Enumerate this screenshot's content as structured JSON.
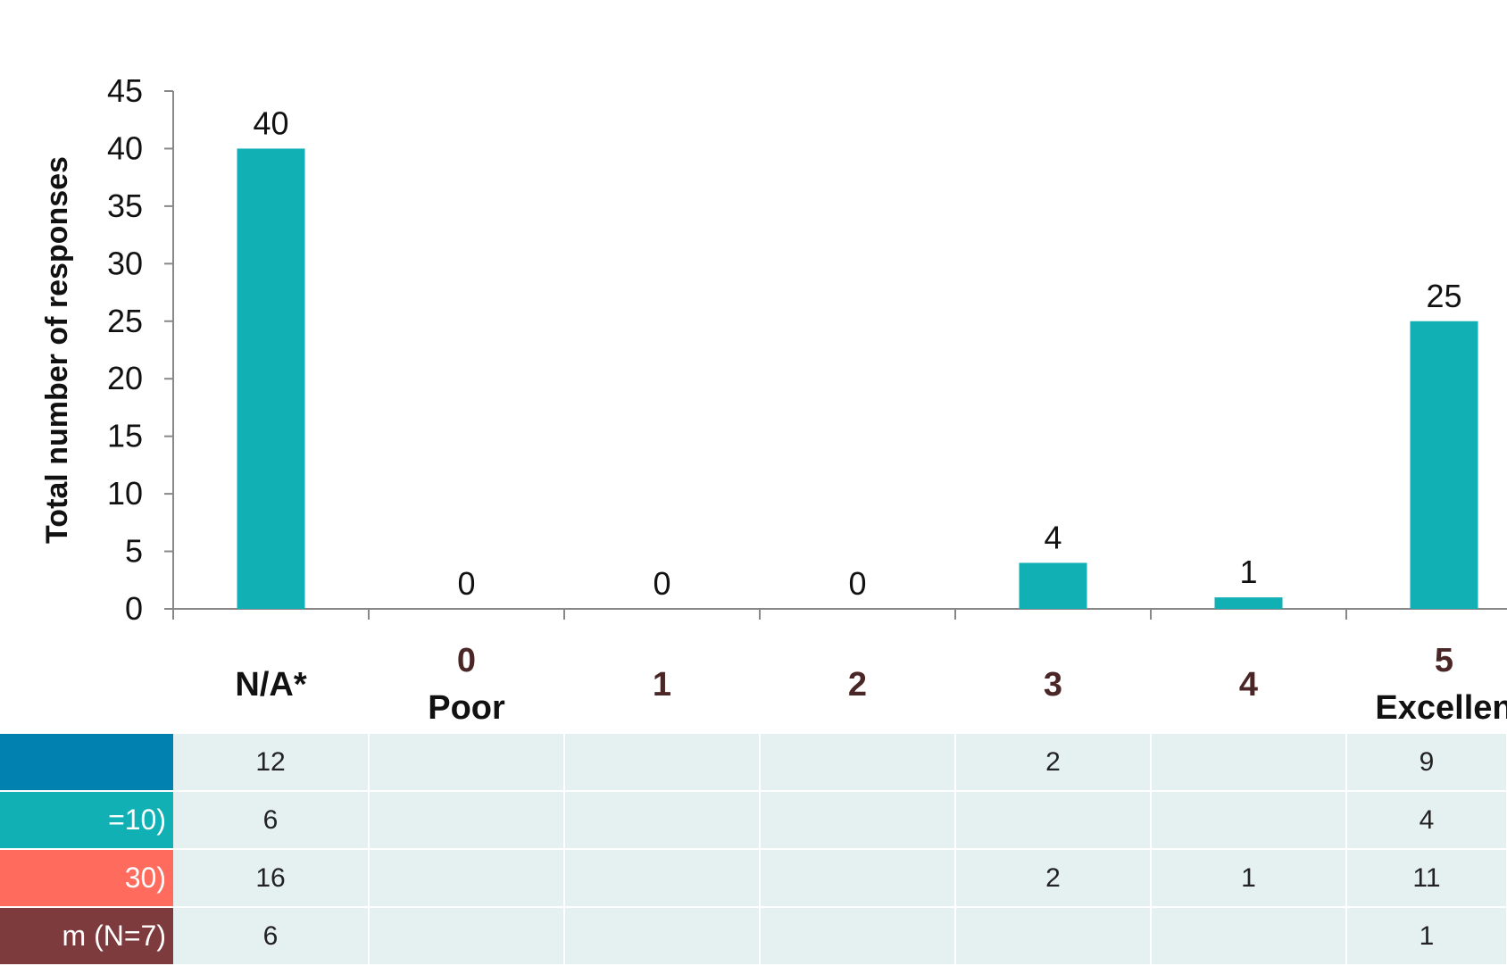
{
  "chart_data": {
    "type": "bar",
    "ylabel": "Total number of responses",
    "ylim": [
      0,
      45
    ],
    "yticks": [
      0,
      5,
      10,
      15,
      20,
      25,
      30,
      35,
      40,
      45
    ],
    "categories": [
      {
        "top": "",
        "bottom": "N/A*"
      },
      {
        "top": "0",
        "bottom": "Poor"
      },
      {
        "top": "",
        "bottom": "1"
      },
      {
        "top": "",
        "bottom": "2"
      },
      {
        "top": "",
        "bottom": "3"
      },
      {
        "top": "",
        "bottom": "4"
      },
      {
        "top": "5",
        "bottom": "Excellen"
      }
    ],
    "values": [
      40,
      0,
      0,
      0,
      4,
      1,
      25
    ],
    "bar_color": "#11b0b4",
    "table": {
      "rows": [
        {
          "label": "",
          "color": "#0081b0",
          "values": [
            "12",
            "",
            "",
            "",
            "2",
            "",
            "9"
          ]
        },
        {
          "label": "=10)",
          "color": "#11b0b4",
          "values": [
            "6",
            "",
            "",
            "",
            "",
            "",
            "4"
          ]
        },
        {
          "label": "30)",
          "color": "#ff6b5d",
          "values": [
            "16",
            "",
            "",
            "",
            "2",
            "1",
            "11"
          ]
        },
        {
          "label": "m (N=7)",
          "color": "#7e3b3d",
          "values": [
            "6",
            "",
            "",
            "",
            "",
            "",
            "1"
          ]
        }
      ]
    }
  },
  "colors": {
    "axis": "#888888",
    "category_numeric_label": "#4b2626",
    "category_text_label": "#111111",
    "table_cell_bg": "#e5f1f1"
  }
}
